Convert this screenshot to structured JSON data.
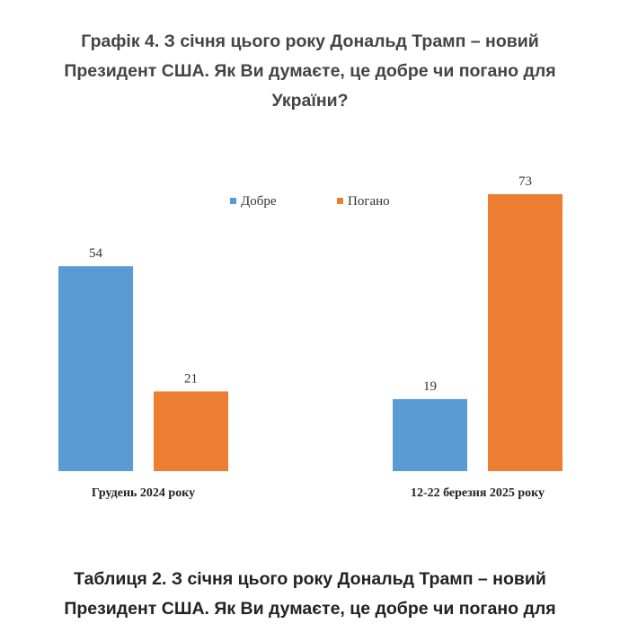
{
  "page": {
    "title_lines": [
      "Графік 4. З січня цього року Дональд Трамп – новий",
      "Президент США. Як Ви думаєте, це добре чи погано для",
      "України?"
    ],
    "next_title_lines": [
      "Таблиця 2. З січня цього року Дональд Трамп – новий",
      "Президент США. Як Ви думаєте, це добре чи погано для"
    ]
  },
  "chart_data": {
    "type": "bar",
    "categories": [
      "Грудень 2024 року",
      "12-22 березня 2025 року"
    ],
    "series": [
      {
        "name": "Добре",
        "values": [
          54,
          19
        ],
        "color": "#5b9bd5"
      },
      {
        "name": "Погано",
        "values": [
          21,
          73
        ],
        "color": "#ed7d31"
      }
    ],
    "ylim": [
      0,
      80
    ],
    "grid": false,
    "legend": "top-center",
    "data_labels": true
  }
}
